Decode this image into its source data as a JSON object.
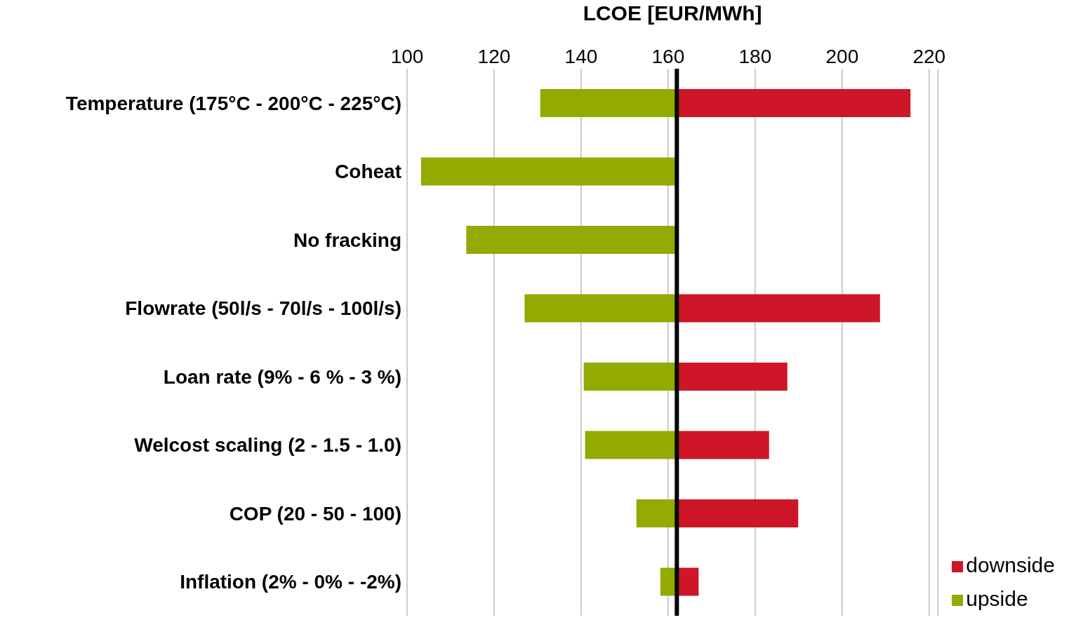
{
  "chart_data": {
    "type": "bar",
    "orientation": "horizontal",
    "xlabel": "LCOE [EUR/MWh]",
    "categories": [
      "Temperature (175°C - 200°C - 225°C)",
      "Coheat ",
      "No fracking",
      "Flowrate (50l/s - 70l/s - 100l/s)",
      "Loan rate (9% - 6 % - 3 %)",
      "Welcost scaling (2 - 1.5 - 1.0)",
      "COP (20 - 50 - 100)",
      "Inflation (2% - 0% - -2%)"
    ],
    "series": [
      {
        "name": "downside",
        "color": "#ce1628",
        "base": [
          162,
          null,
          null,
          162,
          162,
          162,
          162,
          162
        ],
        "values": [
          53.7,
          null,
          null,
          46.7,
          25.4,
          21.2,
          27.9,
          5
        ]
      },
      {
        "name": "upside",
        "color": "#94aa00",
        "base": [
          162,
          162,
          162,
          162,
          162,
          162,
          162,
          162
        ],
        "values": [
          -31.4,
          -58.8,
          -48.4,
          -35,
          -21.4,
          -21.1,
          -9.3,
          -3.8
        ]
      }
    ],
    "xlim": [
      100,
      222
    ],
    "xticks": [
      100,
      120,
      140,
      160,
      180,
      200,
      220
    ],
    "grid": "x",
    "ref_lines": [
      {
        "axis": "x",
        "value": 162,
        "color": "#000000"
      }
    ],
    "legend": "bottom right"
  }
}
